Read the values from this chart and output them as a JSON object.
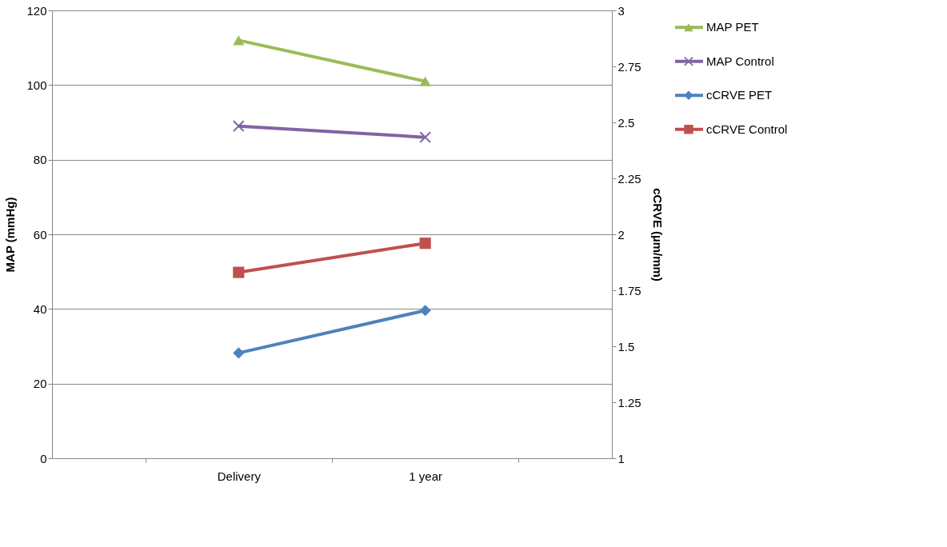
{
  "chart_data": {
    "type": "line",
    "xlabel": null,
    "ylabel": "MAP (mmHg)",
    "y2label": "cCRVE (µm/mm)",
    "categories": [
      "Delivery",
      "1 year"
    ],
    "series": [
      {
        "name": "MAP PET",
        "color": "#9bbb59",
        "marker": "triangle",
        "values": [
          112,
          101
        ]
      },
      {
        "name": "MAP Control",
        "color": "#8064a2",
        "marker": "x",
        "values": [
          89,
          86
        ]
      },
      {
        "name": "cCRVE PET",
        "color": "#4f81bd",
        "marker": "diamond",
        "axis": "y2",
        "values": [
          1.47,
          1.66
        ]
      },
      {
        "name": "cCRVE Control",
        "color": "#c0504d",
        "marker": "square",
        "axis": "y2",
        "values": [
          1.83,
          1.96
        ]
      }
    ],
    "ylim": [
      0,
      120
    ],
    "yticks": [
      0,
      20,
      40,
      60,
      80,
      100,
      120
    ],
    "y2lim": [
      1,
      3
    ],
    "y2ticks": [
      1,
      1.25,
      1.5,
      1.75,
      2,
      2.25,
      2.5,
      2.75,
      3
    ],
    "grid": "y",
    "legend": "right"
  }
}
